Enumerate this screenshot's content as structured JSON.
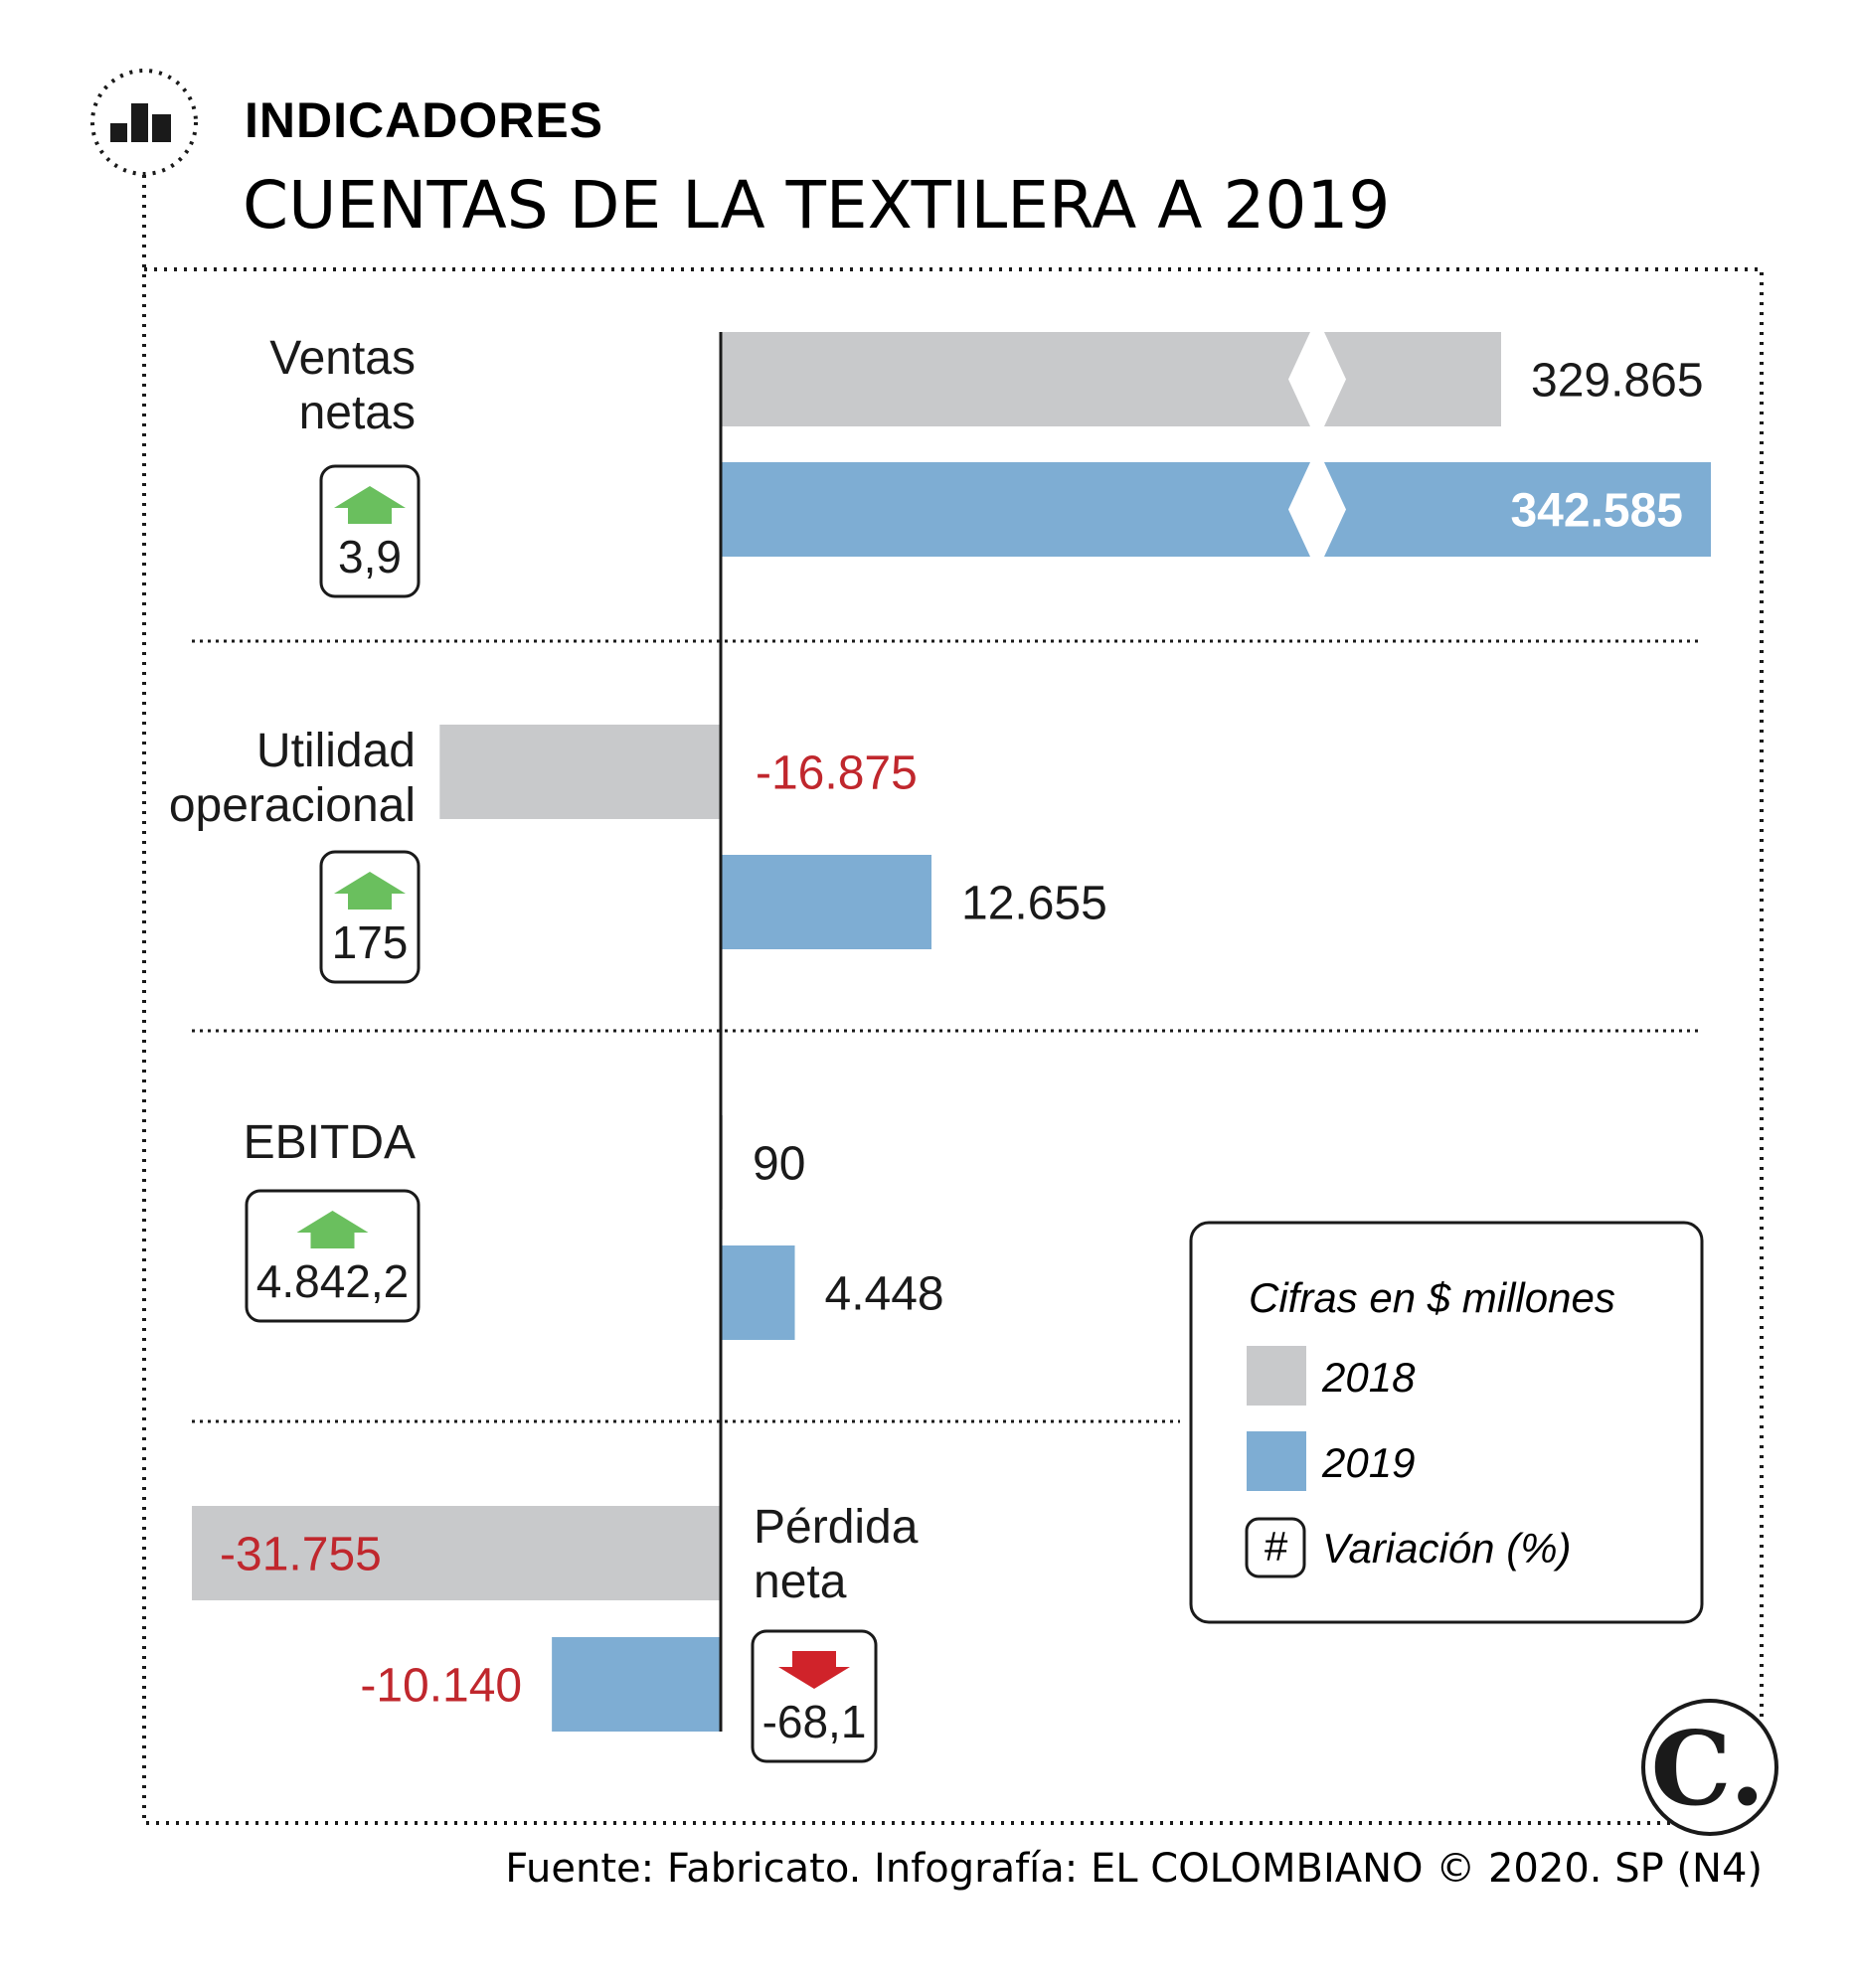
{
  "header": {
    "section_label": "INDICADORES",
    "title": "CUENTAS DE LA TEXTILERA A 2019"
  },
  "colors": {
    "y2018": "#c8c9cb",
    "y2019": "#7eadd3",
    "negative_text": "#c0272d",
    "positive_text": "#1a1a1a",
    "up_arrow": "#6abf5e",
    "down_arrow": "#d0232a",
    "value_on_bar": "#ffffff"
  },
  "legend": {
    "units": "Cifras en $ millones",
    "items": [
      {
        "label": "2018",
        "color": "#c8c9cb"
      },
      {
        "label": "2019",
        "color": "#7eadd3"
      }
    ],
    "variation_symbol": "#",
    "variation_label": "Variación (%)"
  },
  "chart_data": {
    "type": "bar",
    "orientation": "horizontal",
    "units": "$ millones",
    "series_names": [
      "2018",
      "2019"
    ],
    "axis_break_on": "Ventas netas",
    "categories": [
      {
        "name": "Ventas netas",
        "label_lines": [
          "Ventas",
          "netas"
        ],
        "values": [
          329865,
          342585
        ],
        "value_labels": [
          "329.865",
          "342.585"
        ],
        "variation": "3,9",
        "variation_dir": "up"
      },
      {
        "name": "Utilidad operacional",
        "label_lines": [
          "Utilidad",
          "operacional"
        ],
        "values": [
          -16875,
          12655
        ],
        "value_labels": [
          "-16.875",
          "12.655"
        ],
        "variation": "175",
        "variation_dir": "up"
      },
      {
        "name": "EBITDA",
        "label_lines": [
          "EBITDA"
        ],
        "values": [
          90,
          4448
        ],
        "value_labels": [
          "90",
          "4.448"
        ],
        "variation": "4.842,2",
        "variation_dir": "up"
      },
      {
        "name": "Pérdida neta",
        "label_lines": [
          "Pérdida",
          "neta"
        ],
        "values": [
          -31755,
          -10140
        ],
        "value_labels": [
          "-31.755",
          "-10.140"
        ],
        "variation": "-68,1",
        "variation_dir": "down"
      }
    ]
  },
  "footer": {
    "source": "Fuente: Fabricato. Infografía: EL COLOMBIANO © 2020. SP (N4)",
    "logo_letter": "C."
  }
}
